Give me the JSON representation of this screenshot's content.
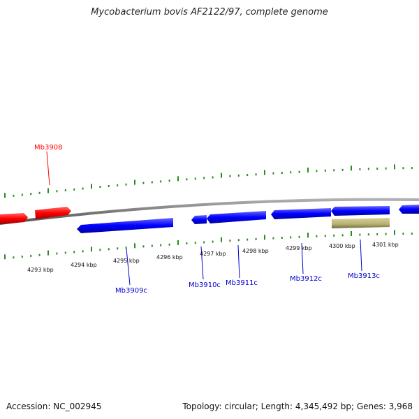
{
  "title": "Mycobacterium bovis AF2122/97, complete genome",
  "footer": {
    "accession": "Accession: NC_002945",
    "summary": "Topology: circular; Length: 4,345,492 bp; Genes: 3,968"
  },
  "colors": {
    "forward_gene": "#ff0000",
    "reverse_gene": "#0000ff",
    "other_feature": "#b8b070",
    "ticks": "#2a8a1f",
    "backbone": "#808080"
  },
  "ticks": [
    {
      "kbp": 4293,
      "label": "4293 kbp"
    },
    {
      "kbp": 4294,
      "label": "4294 kbp"
    },
    {
      "kbp": 4295,
      "label": "4295 kbp"
    },
    {
      "kbp": 4296,
      "label": "4296 kbp"
    },
    {
      "kbp": 4297,
      "label": "4297 kbp"
    },
    {
      "kbp": 4298,
      "label": "4298 kbp"
    },
    {
      "kbp": 4299,
      "label": "4299 kbp"
    },
    {
      "kbp": 4300,
      "label": "4300 kbp"
    },
    {
      "kbp": 4301,
      "label": "4301 kbp"
    }
  ],
  "gene_labels": [
    {
      "name": "Mb3908",
      "strand": "forward"
    },
    {
      "name": "Mb3909c",
      "strand": "reverse"
    },
    {
      "name": "Mb3910c",
      "strand": "reverse"
    },
    {
      "name": "Mb3911c",
      "strand": "reverse"
    },
    {
      "name": "Mb3912c",
      "strand": "reverse"
    },
    {
      "name": "Mb3913c",
      "strand": "reverse"
    }
  ]
}
